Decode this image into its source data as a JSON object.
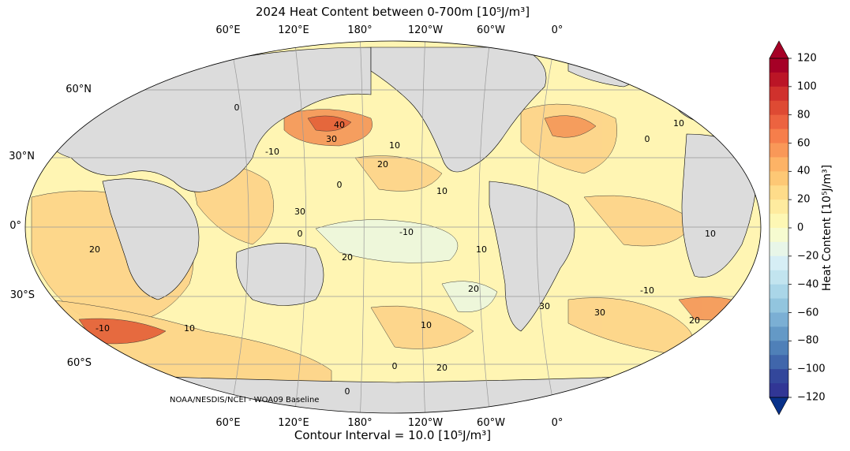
{
  "title": "2024 Heat Content between 0-700m [10⁵J/m³]",
  "footer": "Contour Interval = 10.0 [10⁵J/m³]",
  "credit": "NOAA/NESDIS/NCEI - WOA09 Baseline",
  "longitude_labels": [
    "60°E",
    "120°E",
    "180°",
    "120°W",
    "60°W",
    "0°"
  ],
  "latitude_labels": [
    "60°N",
    "30°N",
    "0°",
    "30°S",
    "60°S"
  ],
  "colorbar": {
    "label": "Heat Content [10⁵J/m³]",
    "ticks": [
      "120",
      "100",
      "80",
      "60",
      "40",
      "20",
      "0",
      "−20",
      "−40",
      "−60",
      "−80",
      "−100",
      "−120"
    ],
    "colors": [
      "#a50026",
      "#bb1526",
      "#d0312d",
      "#de4a33",
      "#ec6340",
      "#f67e4b",
      "#f99858",
      "#fdb366",
      "#fdc875",
      "#fedc8a",
      "#feeb9f",
      "#fdf7b4",
      "#f6fbd0",
      "#e8f6e8",
      "#d6eef5",
      "#c2e4ef",
      "#aad6e8",
      "#92c5de",
      "#7bafd4",
      "#6499c6",
      "#4f80b8",
      "#4066ab",
      "#33479b",
      "#313695"
    ],
    "extend_max_color": "#a50026",
    "extend_min_color": "#08318a"
  },
  "contour_labels": [
    "10",
    "20",
    "0",
    "30",
    "40",
    "-10",
    "20",
    "10",
    "0",
    "30",
    "10",
    "20",
    "0",
    "-10",
    "10",
    "20",
    "30",
    "10",
    "0",
    "20",
    "-10",
    "10",
    "20",
    "30",
    "0",
    "10",
    "20",
    "-10",
    "10",
    "0"
  ],
  "colors": {
    "land": "#dcdcdc",
    "ocean_base": "#fff5b3",
    "warm": "#fdd58a",
    "hot": "#f59a5b",
    "very_hot": "#e5653b",
    "cool": "#eef8dd"
  }
}
